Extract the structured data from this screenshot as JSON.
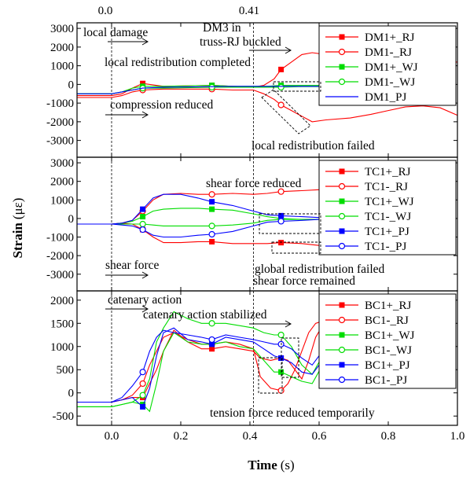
{
  "chart_data": {
    "type": "line",
    "xlabel_bold": "Time",
    "xlabel_unit": "(s)",
    "ylabel_bold": "Strain",
    "ylabel_unit": "(με)",
    "xlim": [
      -0.1,
      1.0
    ],
    "xticks": [
      "0.0",
      "0.2",
      "0.4",
      "0.6",
      "0.8",
      "1.0"
    ],
    "xtick_values": [
      0.0,
      0.2,
      0.4,
      0.6,
      0.8,
      1.0
    ],
    "markers": [
      {
        "x": 0.0,
        "label": "0.0"
      },
      {
        "x": 0.41,
        "label": "0.41"
      }
    ],
    "panels": [
      {
        "id": "dm",
        "ylim": [
          -3900,
          3300
        ],
        "yticks": [
          3000,
          2000,
          1000,
          0,
          -1000,
          -2000,
          -3000
        ],
        "ytick_labels": [
          "3000",
          "2000",
          "1000",
          "0",
          "-1000",
          "-2000",
          "-3000"
        ],
        "legend": [
          "DM1+_RJ",
          "DM1-_RJ",
          "DM1+_WJ",
          "DM1-_WJ",
          "DM1_PJ"
        ],
        "series": [
          {
            "name": "DM1+_RJ",
            "color": "#ff0000",
            "marker": "square",
            "x": [
              -0.1,
              0.0,
              0.03,
              0.06,
              0.09,
              0.15,
              0.29,
              0.35,
              0.41,
              0.44,
              0.47,
              0.49,
              0.52,
              0.55,
              0.58,
              0.62,
              0.66,
              0.7,
              0.8,
              0.9,
              1.0
            ],
            "y": [
              -600,
              -600,
              -500,
              -200,
              50,
              -100,
              -50,
              -100,
              -150,
              -50,
              300,
              800,
              1200,
              1600,
              1700,
              1600,
              1400,
              1200,
              1200,
              1200,
              1200
            ]
          },
          {
            "name": "DM1-_RJ",
            "color": "#ff0000",
            "marker": "circle",
            "x": [
              -0.1,
              0.0,
              0.03,
              0.06,
              0.09,
              0.15,
              0.29,
              0.35,
              0.41,
              0.44,
              0.47,
              0.49,
              0.52,
              0.55,
              0.58,
              0.62,
              0.69,
              0.75,
              0.8,
              0.85,
              0.9,
              0.95,
              1.0
            ],
            "y": [
              -700,
              -700,
              -600,
              -400,
              -300,
              -250,
              -250,
              -300,
              -300,
              -500,
              -800,
              -1100,
              -1400,
              -1700,
              -2000,
              -1900,
              -1800,
              -1600,
              -1400,
              -1200,
              -1150,
              -1250,
              -1650
            ]
          },
          {
            "name": "DM1+_WJ",
            "color": "#00dd00",
            "marker": "square",
            "x": [
              -0.1,
              0.0,
              0.03,
              0.06,
              0.09,
              0.15,
              0.29,
              0.35,
              0.41,
              0.45,
              0.49,
              0.55,
              0.6,
              0.65
            ],
            "y": [
              -500,
              -500,
              -400,
              -200,
              -100,
              -100,
              -50,
              -100,
              -100,
              -100,
              -50,
              -50,
              -50,
              -50
            ]
          },
          {
            "name": "DM1-_WJ",
            "color": "#00dd00",
            "marker": "circle",
            "x": [
              -0.1,
              0.0,
              0.03,
              0.06,
              0.09,
              0.15,
              0.29,
              0.35,
              0.41,
              0.45,
              0.49,
              0.55,
              0.6,
              0.65
            ],
            "y": [
              -500,
              -500,
              -400,
              -300,
              -200,
              -200,
              -150,
              -150,
              -150,
              -150,
              -150,
              -120,
              -120,
              -120
            ]
          },
          {
            "name": "DM1_PJ",
            "color": "#0000ff",
            "marker": "none",
            "x": [
              -0.1,
              0.0,
              0.03,
              0.06,
              0.09,
              0.15,
              0.29,
              0.35,
              0.41,
              0.45,
              0.49,
              0.55,
              0.6,
              0.65
            ],
            "y": [
              -500,
              -500,
              -400,
              -300,
              -200,
              -150,
              -120,
              -100,
              -100,
              -100,
              -100,
              -100,
              -100,
              -100
            ]
          }
        ],
        "annotations": [
          "local damage",
          "DM3 in",
          "truss-RJ buckled",
          "local redistribution completed",
          "compression reduced",
          "local redistribution failed"
        ]
      },
      {
        "id": "tc",
        "ylim": [
          -3900,
          3300
        ],
        "yticks": [
          3000,
          2000,
          1000,
          0,
          -1000,
          -2000,
          -3000
        ],
        "ytick_labels": [
          "3000",
          "2000",
          "1000",
          "0",
          "-1000",
          "-2000",
          "-3000"
        ],
        "legend": [
          "TC1+_RJ",
          "TC1-_RJ",
          "TC1+_WJ",
          "TC1-_WJ",
          "TC1+_PJ",
          "TC1-_PJ"
        ],
        "series": [
          {
            "name": "TC1+_RJ",
            "color": "#ff0000",
            "marker": "square",
            "x": [
              -0.1,
              0.0,
              0.03,
              0.06,
              0.09,
              0.12,
              0.15,
              0.2,
              0.25,
              0.29,
              0.35,
              0.41,
              0.45,
              0.49,
              0.55,
              0.6,
              0.65
            ],
            "y": [
              -300,
              -300,
              -250,
              -300,
              -600,
              -1000,
              -1300,
              -1300,
              -1250,
              -1250,
              -1350,
              -1350,
              -1350,
              -1300,
              -1350,
              -1450,
              -1500
            ]
          },
          {
            "name": "TC1-_RJ",
            "color": "#ff0000",
            "marker": "circle",
            "x": [
              -0.1,
              0.0,
              0.03,
              0.06,
              0.09,
              0.12,
              0.15,
              0.2,
              0.25,
              0.29,
              0.35,
              0.41,
              0.45,
              0.49,
              0.55,
              0.6,
              0.65
            ],
            "y": [
              -300,
              -300,
              -250,
              -100,
              400,
              1000,
              1300,
              1350,
              1300,
              1300,
              1350,
              1300,
              1350,
              1450,
              1500,
              1550,
              1600
            ]
          },
          {
            "name": "TC1+_WJ",
            "color": "#00dd00",
            "marker": "square",
            "x": [
              -0.1,
              0.0,
              0.03,
              0.06,
              0.09,
              0.12,
              0.15,
              0.2,
              0.25,
              0.29,
              0.35,
              0.41,
              0.45,
              0.49,
              0.55,
              0.6,
              0.65
            ],
            "y": [
              -300,
              -300,
              -250,
              -150,
              100,
              400,
              500,
              550,
              550,
              500,
              450,
              250,
              100,
              0,
              -50,
              -50,
              -50
            ]
          },
          {
            "name": "TC1-_WJ",
            "color": "#00dd00",
            "marker": "circle",
            "x": [
              -0.1,
              0.0,
              0.03,
              0.06,
              0.09,
              0.12,
              0.15,
              0.2,
              0.25,
              0.29,
              0.35,
              0.41,
              0.45,
              0.49,
              0.55,
              0.6,
              0.65
            ],
            "y": [
              -300,
              -300,
              -300,
              -300,
              -300,
              -350,
              -400,
              -400,
              -400,
              -400,
              -350,
              -250,
              -100,
              -50,
              -50,
              -50,
              -50
            ]
          },
          {
            "name": "TC1+_PJ",
            "color": "#0000ff",
            "marker": "square",
            "x": [
              -0.1,
              0.0,
              0.03,
              0.06,
              0.09,
              0.12,
              0.15,
              0.2,
              0.25,
              0.29,
              0.35,
              0.41,
              0.45,
              0.49,
              0.55,
              0.6,
              0.65
            ],
            "y": [
              -300,
              -300,
              -250,
              -100,
              500,
              1100,
              1300,
              1300,
              1100,
              900,
              700,
              400,
              200,
              150,
              100,
              50,
              50
            ]
          },
          {
            "name": "TC1-_PJ",
            "color": "#0000ff",
            "marker": "circle",
            "x": [
              -0.1,
              0.0,
              0.03,
              0.06,
              0.09,
              0.12,
              0.15,
              0.2,
              0.25,
              0.29,
              0.35,
              0.41,
              0.45,
              0.49,
              0.55,
              0.6,
              0.65
            ],
            "y": [
              -300,
              -300,
              -350,
              -400,
              -600,
              -900,
              -1000,
              -1000,
              -900,
              -850,
              -700,
              -400,
              -200,
              -150,
              -100,
              -50,
              -50
            ]
          }
        ],
        "annotations": [
          "shear force reduced",
          "shear force",
          "global redistribution failed",
          "shear force remained"
        ]
      },
      {
        "id": "bc",
        "ylim": [
          -700,
          2200
        ],
        "yticks": [
          2000,
          1500,
          1000,
          500,
          0,
          -500
        ],
        "ytick_labels": [
          "2000",
          "1500",
          "1000",
          "500",
          "0",
          "-500"
        ],
        "legend": [
          "BC1+_RJ",
          "BC1-_RJ",
          "BC1+_WJ",
          "BC1-_WJ",
          "BC1+_PJ",
          "BC1-_PJ"
        ],
        "series": [
          {
            "name": "BC1+_RJ",
            "color": "#ff0000",
            "marker": "square",
            "x": [
              -0.1,
              0.0,
              0.03,
              0.06,
              0.09,
              0.11,
              0.13,
              0.15,
              0.18,
              0.22,
              0.26,
              0.29,
              0.33,
              0.37,
              0.41,
              0.43,
              0.46,
              0.49,
              0.51,
              0.53,
              0.55,
              0.57,
              0.59,
              0.61
            ],
            "y": [
              -200,
              -200,
              -150,
              -100,
              -100,
              200,
              500,
              900,
              1350,
              1100,
              950,
              950,
              1000,
              950,
              900,
              750,
              700,
              750,
              700,
              500,
              300,
              700,
              1200,
              1450
            ]
          },
          {
            "name": "BC1-_RJ",
            "color": "#ff0000",
            "marker": "circle",
            "x": [
              -0.1,
              0.0,
              0.03,
              0.06,
              0.09,
              0.11,
              0.13,
              0.15,
              0.18,
              0.22,
              0.26,
              0.29,
              0.33,
              0.37,
              0.41,
              0.43,
              0.46,
              0.49,
              0.51,
              0.53,
              0.55,
              0.57,
              0.59,
              0.61
            ],
            "y": [
              -200,
              -200,
              -150,
              -50,
              200,
              600,
              900,
              1200,
              1300,
              1150,
              1050,
              1050,
              1100,
              1050,
              950,
              350,
              100,
              50,
              200,
              500,
              900,
              1300,
              1500,
              1550
            ]
          },
          {
            "name": "BC1+_WJ",
            "color": "#00dd00",
            "marker": "square",
            "x": [
              -0.1,
              0.0,
              0.03,
              0.06,
              0.09,
              0.11,
              0.13,
              0.15,
              0.18,
              0.22,
              0.26,
              0.29,
              0.33,
              0.37,
              0.41,
              0.44,
              0.47,
              0.49,
              0.52,
              0.55,
              0.58,
              0.61
            ],
            "y": [
              -300,
              -300,
              -250,
              -200,
              -250,
              -400,
              200,
              900,
              1300,
              1100,
              1050,
              1050,
              1100,
              1000,
              950,
              700,
              450,
              450,
              350,
              250,
              200,
              600
            ]
          },
          {
            "name": "BC1-_WJ",
            "color": "#00dd00",
            "marker": "circle",
            "x": [
              -0.1,
              0.0,
              0.03,
              0.06,
              0.09,
              0.11,
              0.13,
              0.15,
              0.18,
              0.22,
              0.26,
              0.29,
              0.33,
              0.37,
              0.41,
              0.44,
              0.47,
              0.49,
              0.52,
              0.55,
              0.58,
              0.61
            ],
            "y": [
              -300,
              -300,
              -250,
              -200,
              -50,
              300,
              1100,
              1400,
              1750,
              1600,
              1500,
              1500,
              1500,
              1450,
              1400,
              1300,
              1250,
              1250,
              1000,
              600,
              400,
              800
            ]
          },
          {
            "name": "BC1+_PJ",
            "color": "#0000ff",
            "marker": "square",
            "x": [
              -0.1,
              0.0,
              0.03,
              0.06,
              0.09,
              0.11,
              0.13,
              0.15,
              0.18,
              0.22,
              0.26,
              0.29,
              0.33,
              0.37,
              0.41,
              0.44,
              0.47,
              0.49,
              0.52,
              0.55,
              0.58,
              0.61
            ],
            "y": [
              -200,
              -200,
              -150,
              -100,
              -300,
              100,
              800,
              1300,
              1400,
              1150,
              1100,
              1050,
              1200,
              1150,
              1100,
              950,
              800,
              750,
              650,
              450,
              400,
              700
            ]
          },
          {
            "name": "BC1-_PJ",
            "color": "#0000ff",
            "marker": "circle",
            "x": [
              -0.1,
              0.0,
              0.03,
              0.06,
              0.09,
              0.11,
              0.13,
              0.15,
              0.18,
              0.22,
              0.26,
              0.29,
              0.33,
              0.37,
              0.41,
              0.44,
              0.47,
              0.49,
              0.52,
              0.55,
              0.58,
              0.61
            ],
            "y": [
              -200,
              -200,
              -100,
              150,
              450,
              900,
              1200,
              1350,
              1300,
              1250,
              1200,
              1150,
              1250,
              1200,
              1150,
              1100,
              1050,
              1050,
              950,
              750,
              600,
              900
            ]
          }
        ],
        "annotations": [
          "catenary action",
          "catenary action stabilized",
          "tension force reduced temporarily"
        ]
      }
    ]
  }
}
